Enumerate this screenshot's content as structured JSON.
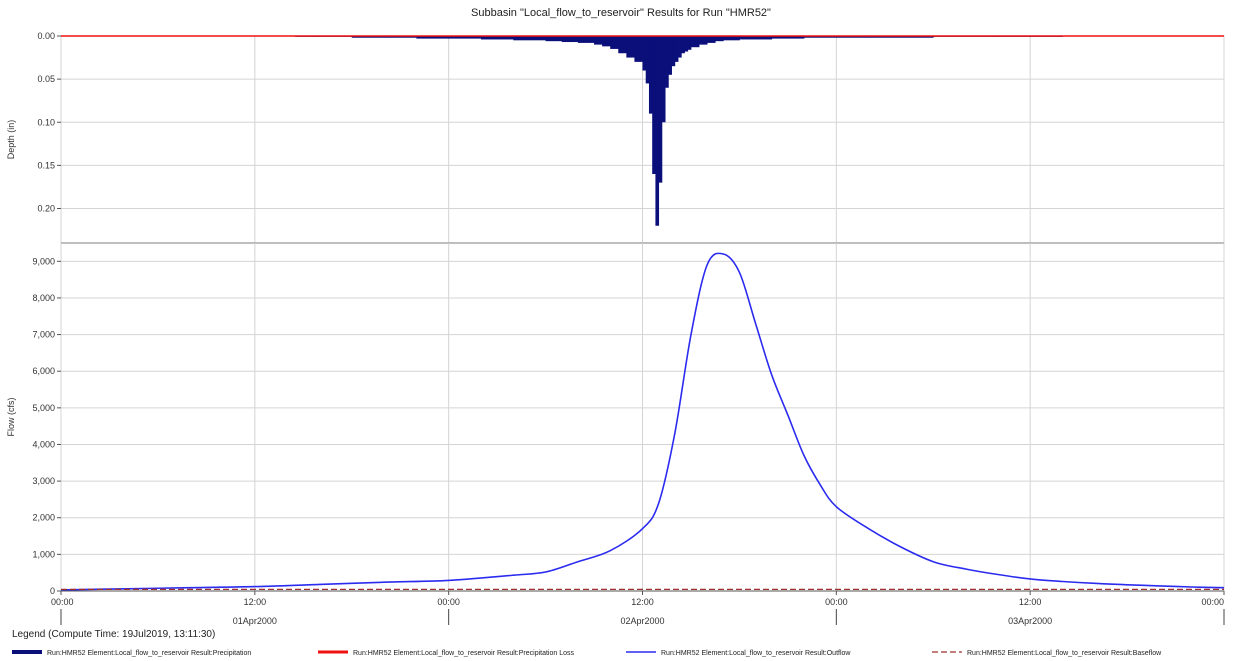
{
  "chart_data": {
    "title": "Subbasin \"Local_flow_to_reservoir\" Results for Run \"HMR52\"",
    "colors": {
      "precipitation": "#0b0f7a",
      "precipitation_loss": "#ee1111",
      "outflow": "#2b2bf0",
      "baseflow": "#a03030",
      "grid": "#d4d4d4",
      "divider": "#000000"
    },
    "top_panel": {
      "type": "bar",
      "ylabel": "Depth (in)",
      "ylim": [
        0.0,
        0.24
      ],
      "inverted": true,
      "yticks": [
        "0.00",
        "0.05",
        "0.10",
        "0.15",
        "0.20"
      ],
      "ytick_values": [
        0.0,
        0.05,
        0.1,
        0.15,
        0.2
      ],
      "series": [
        {
          "name": "Run:HMR52 Element:Local_flow_to_reservoir Result:Precipitation",
          "x_hours": [
            14.5,
            16,
            18,
            20,
            22,
            24,
            26,
            28,
            30,
            31,
            32,
            33,
            33.5,
            34,
            34.5,
            35,
            35.5,
            36,
            36.2,
            36.4,
            36.6,
            36.8,
            37.0,
            37.2,
            37.4,
            37.6,
            37.8,
            38.0,
            38.2,
            38.4,
            38.6,
            38.8,
            39.0,
            39.5,
            40,
            40.5,
            41,
            42,
            44,
            46,
            50,
            54,
            58,
            62
          ],
          "values": [
            0.001,
            0.001,
            0.002,
            0.002,
            0.003,
            0.003,
            0.004,
            0.005,
            0.006,
            0.007,
            0.008,
            0.01,
            0.012,
            0.015,
            0.02,
            0.025,
            0.03,
            0.04,
            0.055,
            0.09,
            0.16,
            0.22,
            0.17,
            0.1,
            0.06,
            0.045,
            0.035,
            0.03,
            0.025,
            0.02,
            0.018,
            0.016,
            0.013,
            0.01,
            0.008,
            0.006,
            0.005,
            0.004,
            0.003,
            0.002,
            0.002,
            0.001,
            0.001,
            0.001
          ]
        },
        {
          "name": "Run:HMR52 Element:Local_flow_to_reservoir Result:Precipitation Loss",
          "x_hours": [
            0,
            72
          ],
          "values": [
            0.0,
            0.0
          ]
        }
      ]
    },
    "bottom_panel": {
      "type": "line",
      "ylabel": "Flow (cfs)",
      "ylim": [
        0,
        9500
      ],
      "yticks": [
        "0",
        "1,000",
        "2,000",
        "3,000",
        "4,000",
        "5,000",
        "6,000",
        "7,000",
        "8,000",
        "9,000"
      ],
      "ytick_values": [
        0,
        1000,
        2000,
        3000,
        4000,
        5000,
        6000,
        7000,
        8000,
        9000
      ],
      "series": [
        {
          "name": "Run:HMR52 Element:Local_flow_to_reservoir Result:Outflow",
          "style": "solid",
          "x_hours": [
            0,
            4,
            8,
            12,
            16,
            20,
            24,
            28,
            30,
            32,
            34,
            36,
            37,
            38,
            39,
            40,
            41,
            42,
            43,
            44,
            45,
            46,
            47,
            48,
            50,
            52,
            54,
            56,
            58,
            60,
            62,
            64,
            66,
            68,
            70,
            72
          ],
          "values": [
            30,
            60,
            90,
            120,
            180,
            240,
            290,
            430,
            520,
            800,
            1100,
            1700,
            2400,
            4300,
            7000,
            8900,
            9200,
            8700,
            7300,
            5900,
            4800,
            3700,
            2900,
            2300,
            1700,
            1200,
            800,
            600,
            450,
            330,
            260,
            210,
            170,
            140,
            110,
            90
          ]
        },
        {
          "name": "Run:HMR52 Element:Local_flow_to_reservoir Result:Baseflow",
          "style": "dashed",
          "x_hours": [
            0,
            72
          ],
          "values": [
            45,
            45
          ]
        }
      ]
    },
    "x_axis": {
      "range_hours": [
        0,
        72
      ],
      "tick_hours": [
        0,
        12,
        24,
        36,
        48,
        60,
        72
      ],
      "tick_labels": [
        "00:00",
        "12:00",
        "00:00",
        "12:00",
        "00:00",
        "12:00",
        "00:00"
      ],
      "date_hours": [
        12,
        36,
        60
      ],
      "date_labels": [
        "01Apr2000",
        "02Apr2000",
        "03Apr2000"
      ]
    },
    "legend": {
      "title": "Legend (Compute Time: 19Jul2019, 13:11:30)"
    }
  }
}
